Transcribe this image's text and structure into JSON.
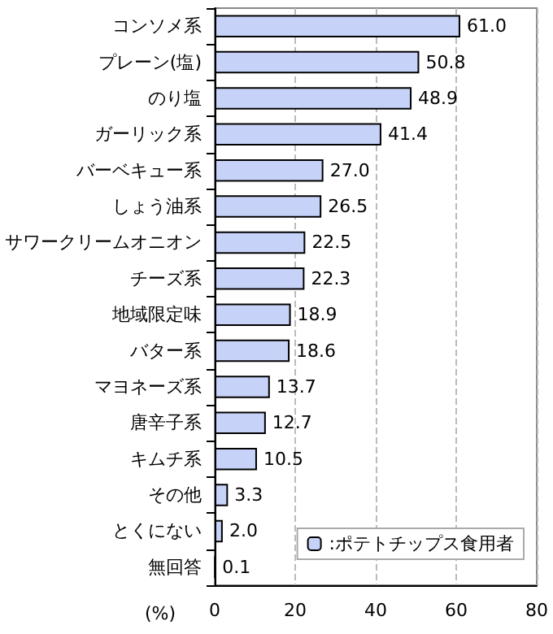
{
  "chart_data": {
    "type": "bar",
    "orientation": "horizontal",
    "xlabel": "(%)",
    "categories": [
      "コンソメ系",
      "プレーン(塩)",
      "のり塩",
      "ガーリック系",
      "バーベキュー系",
      "しょう油系",
      "サワークリームオニオン",
      "チーズ系",
      "地域限定味",
      "バター系",
      "マヨネーズ系",
      "唐辛子系",
      "キムチ系",
      "その他",
      "とくにない",
      "無回答"
    ],
    "series": [
      {
        "name": ":ポテトチップス食用者",
        "color": "#c6d2f7",
        "values": [
          61.0,
          50.8,
          48.9,
          41.4,
          27.0,
          26.5,
          22.5,
          22.3,
          18.9,
          18.6,
          13.7,
          12.7,
          10.5,
          3.3,
          2.0,
          0.1
        ],
        "value_labels": [
          "61.0",
          "50.8",
          "48.9",
          "41.4",
          "27.0",
          "26.5",
          "22.5",
          "22.3",
          "18.9",
          "18.6",
          "13.7",
          "12.7",
          "10.5",
          "3.3",
          "2.0",
          "0.1"
        ]
      }
    ],
    "xlim": [
      0,
      80
    ],
    "xticks": [
      0,
      20,
      40,
      60,
      80
    ],
    "grid": "x",
    "legend": "bottom right"
  }
}
